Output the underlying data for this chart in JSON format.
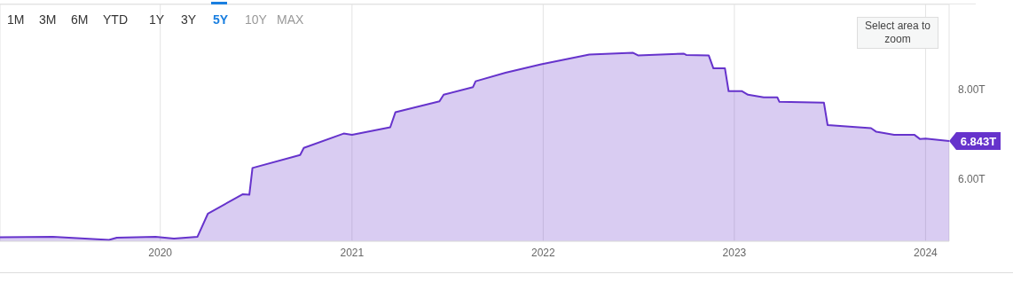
{
  "chart_data": {
    "type": "area",
    "annotations": [
      "1M",
      "3M",
      "6M",
      "YTD",
      "1Y",
      "3Y",
      "5Y",
      "10Y",
      "MAX",
      "Select area to zoom"
    ],
    "x": [
      "2019-03-01",
      "2019-06-10",
      "2019-09-25",
      "2019-10-10",
      "2019-12-23",
      "2020-01-27",
      "2020-03-12",
      "2020-04-01",
      "2020-06-06",
      "2020-06-19",
      "2020-06-25",
      "2020-09-24",
      "2020-10-01",
      "2020-12-16",
      "2021-01-01",
      "2021-03-15",
      "2021-03-25",
      "2021-06-17",
      "2021-06-25",
      "2021-08-20",
      "2021-08-25",
      "2021-10-21",
      "2021-12-28",
      "2022-03-30",
      "2022-06-21",
      "2022-07-01",
      "2022-09-26",
      "2022-10-01",
      "2022-11-13",
      "2022-11-22",
      "2022-12-14",
      "2022-12-21",
      "2023-01-15",
      "2023-01-27",
      "2023-02-26",
      "2023-03-24",
      "2023-03-28",
      "2023-06-21",
      "2023-06-28",
      "2023-09-19",
      "2023-09-29",
      "2023-11-02",
      "2023-12-11",
      "2023-12-21",
      "2024-01-01",
      "2024-02-15"
    ],
    "series": [
      {
        "color": "#6633cc",
        "values": [
          4.69,
          4.7,
          4.63,
          4.68,
          4.7,
          4.66,
          4.7,
          5.22,
          5.65,
          5.64,
          6.24,
          6.53,
          6.69,
          7.01,
          6.98,
          7.15,
          7.49,
          7.73,
          7.88,
          8.05,
          8.18,
          8.37,
          8.56,
          8.78,
          8.82,
          8.76,
          8.8,
          8.77,
          8.76,
          8.47,
          8.47,
          7.96,
          7.96,
          7.88,
          7.82,
          7.82,
          7.72,
          7.7,
          7.2,
          7.13,
          7.05,
          6.98,
          6.98,
          6.89,
          6.9,
          6.843
        ],
        "value_labels": [
          null,
          null,
          null,
          null,
          null,
          null,
          null,
          null,
          null,
          null,
          null,
          null,
          null,
          null,
          null,
          null,
          null,
          null,
          null,
          null,
          null,
          null,
          null,
          null,
          null,
          null,
          null,
          null,
          null,
          null,
          null,
          null,
          null,
          null,
          null,
          null,
          null,
          null,
          null,
          null,
          null,
          null,
          null,
          null,
          null,
          "6.843T"
        ]
      }
    ],
    "xlim": [
      "2019-03-01",
      "2024-02-15"
    ],
    "xticks": [
      {
        "value": "2020-01-01",
        "label": "2020"
      },
      {
        "value": "2021-01-01",
        "label": "2021"
      },
      {
        "value": "2022-01-01",
        "label": "2022"
      },
      {
        "value": "2023-01-01",
        "label": "2023"
      },
      {
        "value": "2024-01-01",
        "label": "2024"
      }
    ],
    "ylim": [
      4.6,
      9.9
    ],
    "yticks": [
      {
        "value": 6,
        "label": "6.00T"
      },
      {
        "value": 8,
        "label": "8.00T"
      }
    ],
    "grid": true
  }
}
